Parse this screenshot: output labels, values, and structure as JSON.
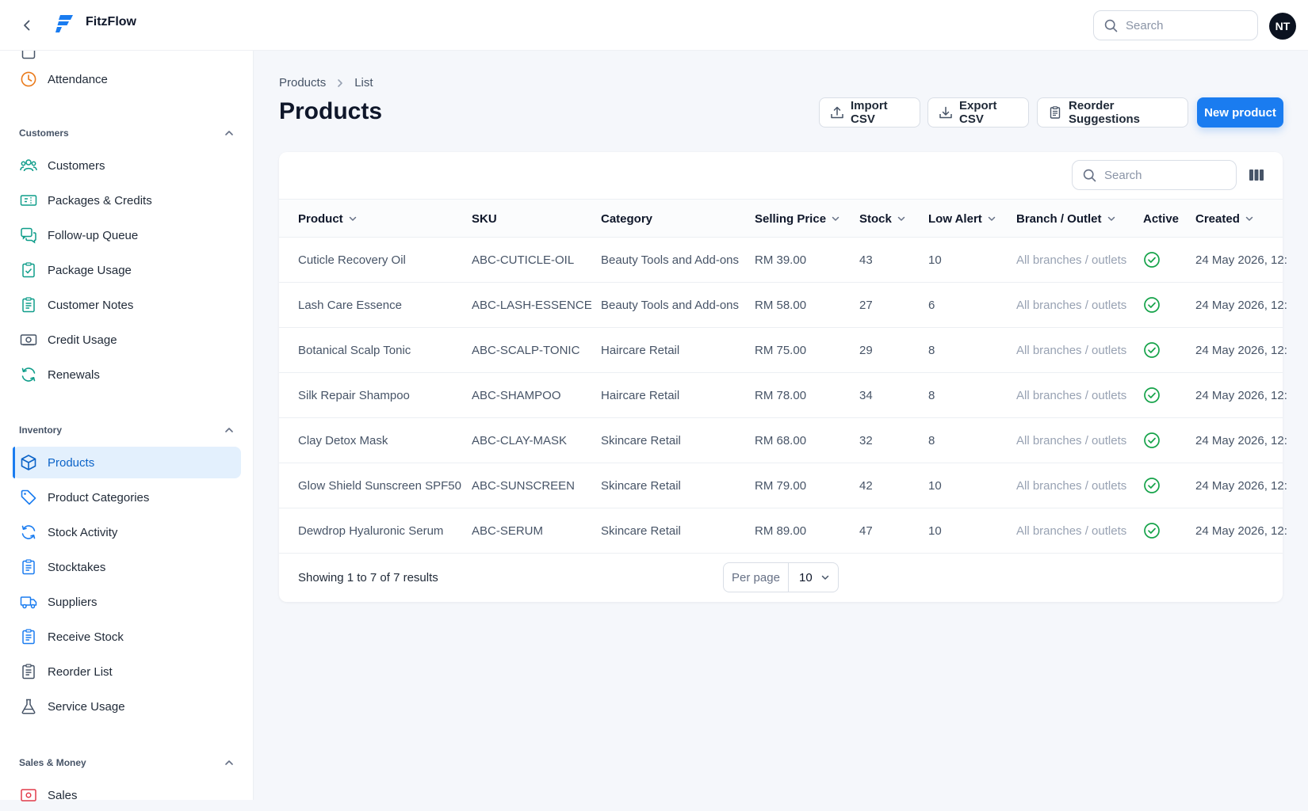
{
  "app": {
    "name": "FitzFlow",
    "user_initials": "NT",
    "search_placeholder": "Search"
  },
  "sidebar": {
    "top_items": [
      {
        "label": "Attendance",
        "icon": "clock-icon"
      }
    ],
    "sections": [
      {
        "title": "Customers",
        "items": [
          {
            "label": "Customers",
            "icon": "users-icon"
          },
          {
            "label": "Packages & Credits",
            "icon": "ticket-icon"
          },
          {
            "label": "Follow-up Queue",
            "icon": "chat-icon"
          },
          {
            "label": "Package Usage",
            "icon": "clipboard-check-icon"
          },
          {
            "label": "Customer Notes",
            "icon": "clipboard-list-icon"
          },
          {
            "label": "Credit Usage",
            "icon": "money-icon"
          },
          {
            "label": "Renewals",
            "icon": "refresh-icon"
          }
        ]
      },
      {
        "title": "Inventory",
        "items": [
          {
            "label": "Products",
            "icon": "cube-icon",
            "active": true
          },
          {
            "label": "Product Categories",
            "icon": "tag-icon"
          },
          {
            "label": "Stock Activity",
            "icon": "refresh-icon"
          },
          {
            "label": "Stocktakes",
            "icon": "clipboard-list-icon"
          },
          {
            "label": "Suppliers",
            "icon": "truck-icon"
          },
          {
            "label": "Receive Stock",
            "icon": "clipboard-list-icon"
          },
          {
            "label": "Reorder List",
            "icon": "clipboard-list-icon"
          },
          {
            "label": "Service Usage",
            "icon": "beaker-icon"
          }
        ]
      },
      {
        "title": "Sales & Money",
        "items": [
          {
            "label": "Sales",
            "icon": "receipt-icon"
          }
        ]
      }
    ]
  },
  "page": {
    "breadcrumb": [
      "Products",
      "List"
    ],
    "title": "Products",
    "actions": {
      "import": "Import CSV",
      "export": "Export CSV",
      "reorder": "Reorder Suggestions",
      "new": "New product"
    }
  },
  "table": {
    "search_placeholder": "Search",
    "columns": [
      "Product",
      "SKU",
      "Category",
      "Selling Price",
      "Stock",
      "Low Alert",
      "Branch / Outlet",
      "Active",
      "Created"
    ],
    "rows": [
      {
        "product": "Cuticle Recovery Oil",
        "sku": "ABC-CUTICLE-OIL",
        "category": "Beauty Tools and Add-ons",
        "price": "RM 39.00",
        "stock": "43",
        "low_alert": "10",
        "branch": "All branches / outlets",
        "active": true,
        "created": "24 May 2026, 12:"
      },
      {
        "product": "Lash Care Essence",
        "sku": "ABC-LASH-ESSENCE",
        "category": "Beauty Tools and Add-ons",
        "price": "RM 58.00",
        "stock": "27",
        "low_alert": "6",
        "branch": "All branches / outlets",
        "active": true,
        "created": "24 May 2026, 12:"
      },
      {
        "product": "Botanical Scalp Tonic",
        "sku": "ABC-SCALP-TONIC",
        "category": "Haircare Retail",
        "price": "RM 75.00",
        "stock": "29",
        "low_alert": "8",
        "branch": "All branches / outlets",
        "active": true,
        "created": "24 May 2026, 12:"
      },
      {
        "product": "Silk Repair Shampoo",
        "sku": "ABC-SHAMPOO",
        "category": "Haircare Retail",
        "price": "RM 78.00",
        "stock": "34",
        "low_alert": "8",
        "branch": "All branches / outlets",
        "active": true,
        "created": "24 May 2026, 12:"
      },
      {
        "product": "Clay Detox Mask",
        "sku": "ABC-CLAY-MASK",
        "category": "Skincare Retail",
        "price": "RM 68.00",
        "stock": "32",
        "low_alert": "8",
        "branch": "All branches / outlets",
        "active": true,
        "created": "24 May 2026, 12:"
      },
      {
        "product": "Glow Shield Sunscreen SPF50",
        "sku": "ABC-SUNSCREEN",
        "category": "Skincare Retail",
        "price": "RM 79.00",
        "stock": "42",
        "low_alert": "10",
        "branch": "All branches / outlets",
        "active": true,
        "created": "24 May 2026, 12:"
      },
      {
        "product": "Dewdrop Hyaluronic Serum",
        "sku": "ABC-SERUM",
        "category": "Skincare Retail",
        "price": "RM 89.00",
        "stock": "47",
        "low_alert": "10",
        "branch": "All branches / outlets",
        "active": true,
        "created": "24 May 2026, 12:"
      }
    ],
    "footer": {
      "summary": "Showing 1 to 7 of 7 results",
      "per_page_label": "Per page",
      "per_page_value": "10"
    }
  },
  "colors": {
    "accent": "#1a7cf0",
    "active_nav_bg": "#e3f0fd",
    "success": "#16a34a",
    "teal_icon": "#0f9d8a",
    "orange_icon": "#ea7a1a",
    "red_icon": "#e23b4a"
  }
}
